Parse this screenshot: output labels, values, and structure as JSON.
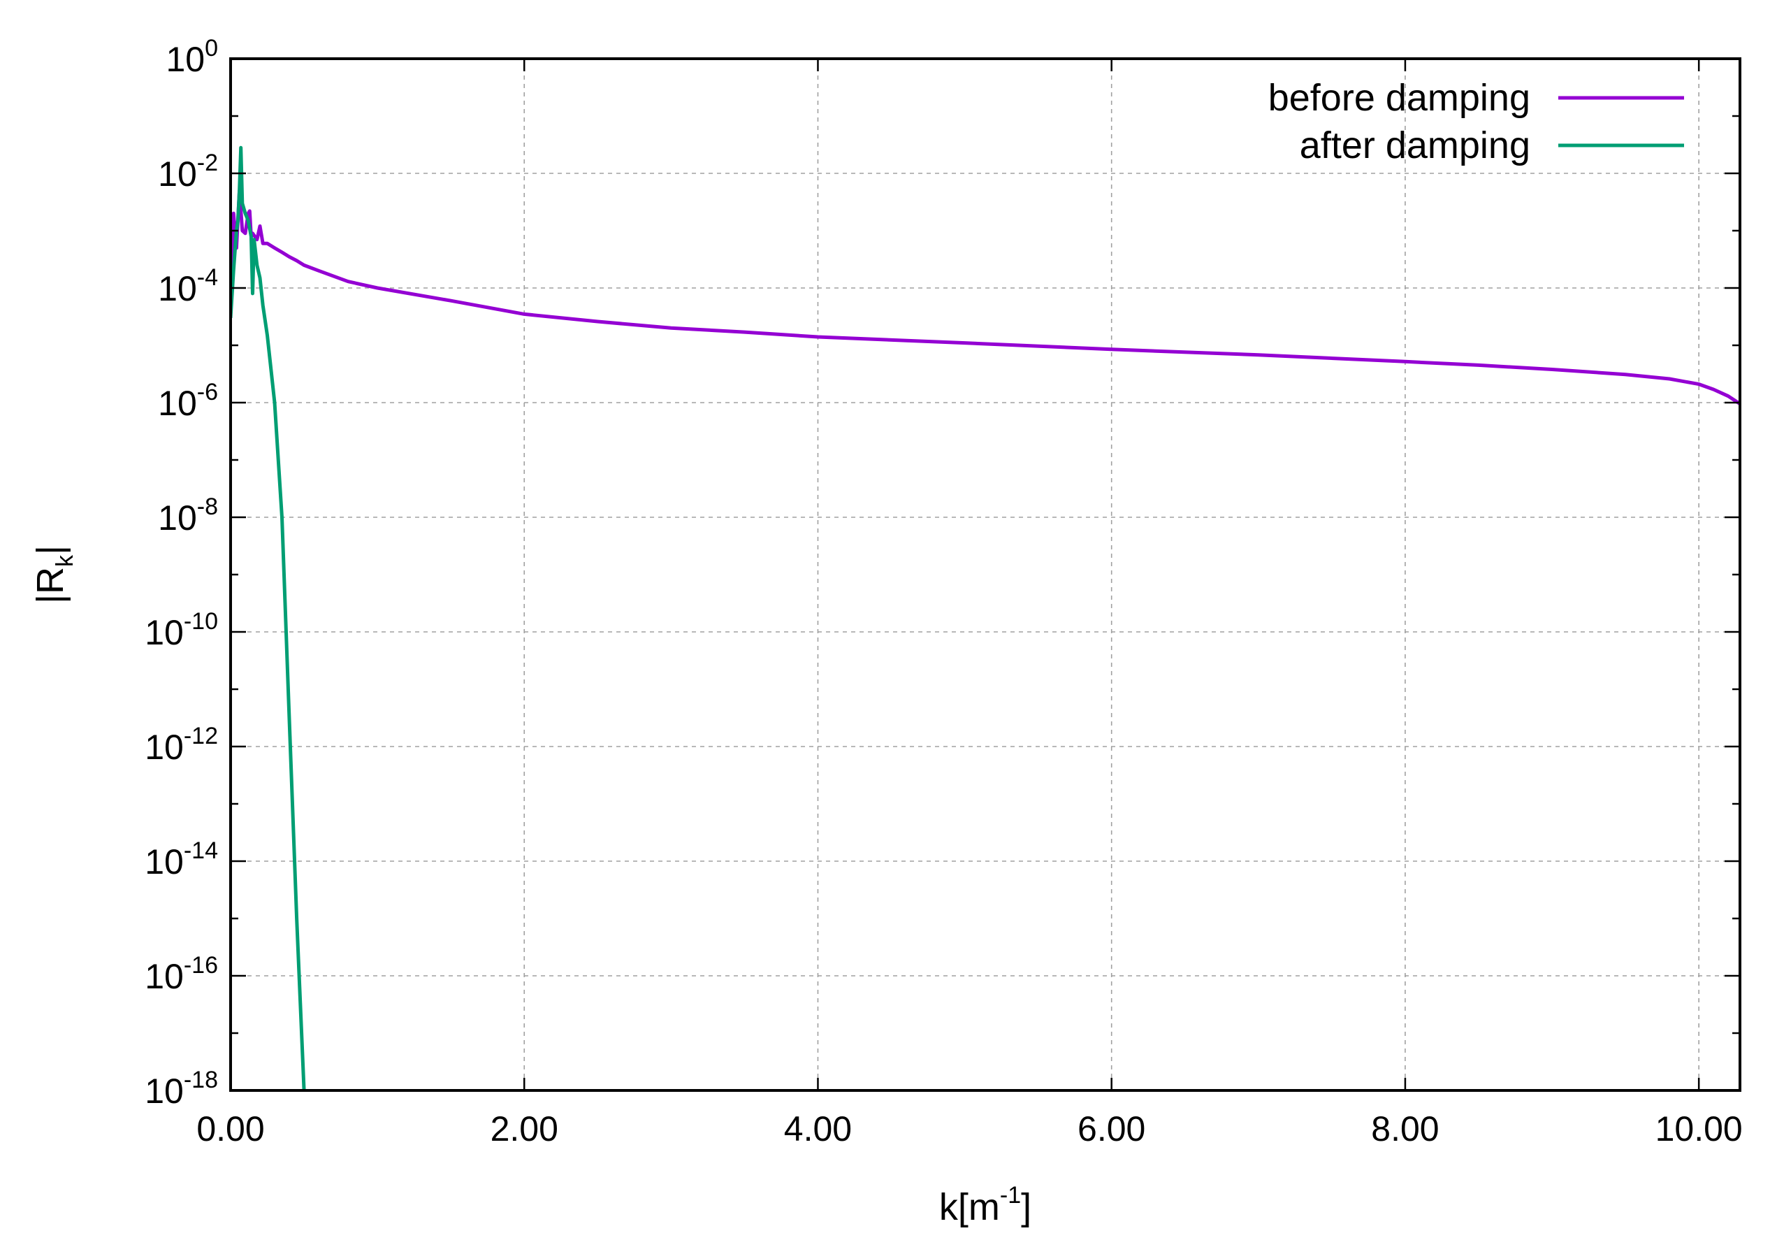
{
  "chart_data": {
    "type": "line",
    "xlabel": "k[m",
    "xlabel_sup": "-1",
    "xlabel_suffix": "]",
    "ylabel_main": "|R",
    "ylabel_sub": "k",
    "ylabel_suffix": "|",
    "x_scale": "linear",
    "y_scale": "log",
    "xlim": [
      0.0,
      10.28
    ],
    "ylim_log10": [
      -18,
      0
    ],
    "x_ticks": [
      0,
      2,
      4,
      6,
      8,
      10
    ],
    "x_tick_labels": [
      "0.00",
      "2.00",
      "4.00",
      "6.00",
      "8.00",
      "10.00"
    ],
    "y_ticks_log10": [
      0,
      -2,
      -4,
      -6,
      -8,
      -10,
      -12,
      -14,
      -16,
      -18
    ],
    "y_tick_base": "10",
    "y_tick_exponents": [
      "0",
      "-2",
      "-4",
      "-6",
      "-8",
      "-10",
      "-12",
      "-14",
      "-16",
      "-18"
    ],
    "grid": true,
    "legend_position": "top-right",
    "series": [
      {
        "name": "before damping",
        "color": "#9400d3",
        "x": [
          0.0,
          0.02,
          0.04,
          0.06,
          0.08,
          0.1,
          0.12,
          0.13,
          0.14,
          0.15,
          0.18,
          0.2,
          0.22,
          0.25,
          0.3,
          0.35,
          0.4,
          0.45,
          0.5,
          0.6,
          0.8,
          1.0,
          1.5,
          2.0,
          2.5,
          3.0,
          3.5,
          4.0,
          5.0,
          6.0,
          7.0,
          8.0,
          8.5,
          9.0,
          9.5,
          9.8,
          10.0,
          10.1,
          10.2,
          10.28
        ],
        "y": [
          0.0001,
          0.002,
          0.0005,
          0.005,
          0.001,
          0.0009,
          0.002,
          0.0022,
          0.0008,
          0.0009,
          0.0007,
          0.0012,
          0.0006,
          0.0006,
          0.0005,
          0.00042,
          0.00035,
          0.0003,
          0.00025,
          0.0002,
          0.00013,
          0.0001,
          6e-05,
          3.5e-05,
          2.6e-05,
          2e-05,
          1.7e-05,
          1.4e-05,
          1.1e-05,
          8.5e-06,
          6.8e-06,
          5.2e-06,
          4.5e-06,
          3.8e-06,
          3.1e-06,
          2.6e-06,
          2.1e-06,
          1.7e-06,
          1.3e-06,
          9.5e-07
        ]
      },
      {
        "name": "after damping",
        "color": "#009e73",
        "x": [
          0.0,
          0.02,
          0.04,
          0.05,
          0.06,
          0.07,
          0.08,
          0.1,
          0.12,
          0.14,
          0.15,
          0.16,
          0.18,
          0.2,
          0.22,
          0.25,
          0.3,
          0.35,
          0.4,
          0.45,
          0.5
        ],
        "y": [
          3e-05,
          0.0002,
          0.001,
          0.0015,
          0.005,
          0.028,
          0.003,
          0.002,
          0.0015,
          0.0008,
          8e-05,
          0.0007,
          0.00025,
          0.00015,
          5e-05,
          1.5e-05,
          1e-06,
          1e-08,
          3e-12,
          1e-15,
          1e-18
        ]
      }
    ]
  }
}
